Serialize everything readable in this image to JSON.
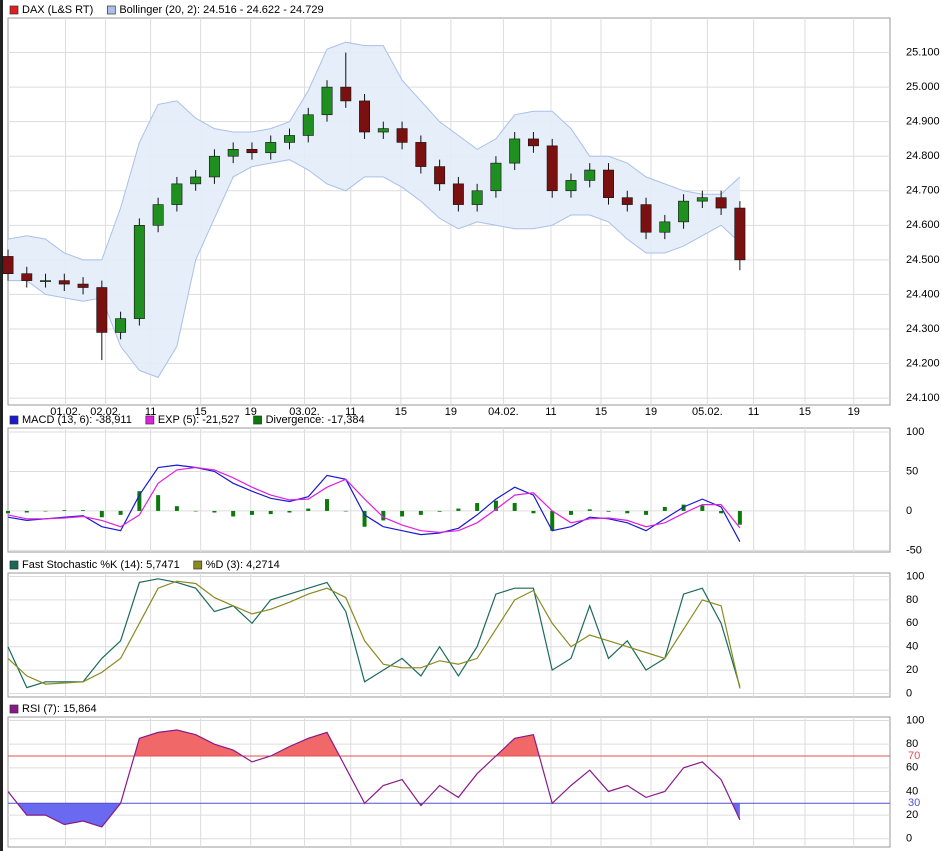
{
  "chart_data": [
    {
      "type": "candlestick",
      "x": [
        0,
        1.5,
        3,
        4.5,
        6,
        7.5,
        9,
        10.5,
        12,
        13.5,
        15,
        16.5,
        18,
        19.5,
        21,
        22.5,
        24,
        25.5,
        27,
        28.5,
        30,
        31.5,
        33,
        34.5,
        36,
        37.5,
        39,
        40.5,
        42,
        43.5,
        45,
        46.5,
        48,
        49.5,
        51,
        52.5,
        54,
        55.5,
        57,
        58.5
      ],
      "candles": {
        "name": "DAX (L&S RT)",
        "color": "#e02020",
        "up_color": "#1f8f1f",
        "down_color": "#7a1010",
        "open": [
          24510,
          24460,
          24440,
          24440,
          24430,
          24420,
          24290,
          24330,
          24600,
          24660,
          24720,
          24740,
          24800,
          24820,
          24810,
          24840,
          24860,
          24920,
          25000,
          24960,
          24870,
          24880,
          24840,
          24770,
          24720,
          24660,
          24700,
          24780,
          24850,
          24830,
          24700,
          24730,
          24760,
          24680,
          24660,
          24580,
          24610,
          24670,
          24680,
          24650
        ],
        "high": [
          24530,
          24480,
          24460,
          24460,
          24450,
          24440,
          24350,
          24620,
          24680,
          24740,
          24760,
          24820,
          24840,
          24840,
          24860,
          24880,
          24940,
          25020,
          25100,
          24980,
          24900,
          24900,
          24860,
          24790,
          24740,
          24720,
          24800,
          24870,
          24870,
          24850,
          24750,
          24780,
          24780,
          24700,
          24680,
          24630,
          24690,
          24700,
          24700,
          24670
        ],
        "low": [
          24440,
          24420,
          24420,
          24410,
          24400,
          24210,
          24270,
          24310,
          24580,
          24640,
          24700,
          24720,
          24780,
          24790,
          24790,
          24820,
          24840,
          24900,
          24940,
          24850,
          24850,
          24820,
          24750,
          24700,
          24640,
          24640,
          24680,
          24760,
          24810,
          24680,
          24680,
          24710,
          24660,
          24640,
          24560,
          24560,
          24590,
          24650,
          24630,
          24470
        ],
        "close": [
          24460,
          24440,
          24440,
          24430,
          24420,
          24290,
          24330,
          24600,
          24660,
          24720,
          24740,
          24800,
          24820,
          24810,
          24840,
          24860,
          24920,
          25000,
          24960,
          24870,
          24880,
          24840,
          24770,
          24720,
          24660,
          24700,
          24780,
          24850,
          24830,
          24700,
          24730,
          24760,
          24680,
          24660,
          24580,
          24610,
          24670,
          24680,
          24650,
          24500
        ]
      },
      "bands": {
        "name": "Bollinger (20, 2): 24.516 - 24.622 - 24.729",
        "color": "#aac0e8",
        "fill": "#e3ecfa",
        "upper": [
          24560,
          24570,
          24560,
          24520,
          24500,
          24500,
          24650,
          24840,
          24950,
          24960,
          24910,
          24880,
          24870,
          24870,
          24880,
          24900,
          24990,
          25110,
          25130,
          25120,
          25120,
          25020,
          24960,
          24900,
          24860,
          24820,
          24850,
          24920,
          24930,
          24930,
          24880,
          24800,
          24800,
          24780,
          24740,
          24720,
          24700,
          24690,
          24690,
          24740
        ],
        "lower": [
          24440,
          24440,
          24400,
          24390,
          24380,
          24390,
          24250,
          24180,
          24160,
          24250,
          24500,
          24620,
          24740,
          24770,
          24780,
          24790,
          24760,
          24720,
          24700,
          24740,
          24740,
          24710,
          24670,
          24620,
          24590,
          24610,
          24600,
          24590,
          24590,
          24600,
          24630,
          24630,
          24610,
          24560,
          24520,
          24520,
          24540,
          24570,
          24600,
          24550
        ]
      },
      "xlim": [
        0,
        70.5
      ],
      "xticks": [
        {
          "value": 4.6,
          "label": "01.02."
        },
        {
          "value": 7.8,
          "label": "02.02."
        },
        {
          "value": 11.4,
          "label": "11"
        },
        {
          "value": 15.4,
          "label": "15"
        },
        {
          "value": 19.4,
          "label": "19"
        },
        {
          "value": 23.7,
          "label": "03.02."
        },
        {
          "value": 27.4,
          "label": "11"
        },
        {
          "value": 31.4,
          "label": "15"
        },
        {
          "value": 35.4,
          "label": "19"
        },
        {
          "value": 39.6,
          "label": "04.02."
        },
        {
          "value": 43.4,
          "label": "11"
        },
        {
          "value": 47.4,
          "label": "15"
        },
        {
          "value": 51.4,
          "label": "19"
        },
        {
          "value": 55.9,
          "label": "05.02."
        },
        {
          "value": 59.6,
          "label": "11"
        },
        {
          "value": 63.7,
          "label": "15"
        },
        {
          "value": 67.6,
          "label": "19"
        }
      ],
      "ylim": [
        24080,
        25200
      ],
      "yticks": [
        {
          "value": 24100,
          "label": "24.100"
        },
        {
          "value": 24200,
          "label": "24.200"
        },
        {
          "value": 24300,
          "label": "24.300"
        },
        {
          "value": 24400,
          "label": "24.400"
        },
        {
          "value": 24500,
          "label": "24.500"
        },
        {
          "value": 24600,
          "label": "24.600"
        },
        {
          "value": 24700,
          "label": "24.700"
        },
        {
          "value": 24800,
          "label": "24.800"
        },
        {
          "value": 24900,
          "label": "24.900"
        },
        {
          "value": 25000,
          "label": "25.000"
        },
        {
          "value": 25100,
          "label": "25.100"
        }
      ],
      "grid": true
    },
    {
      "type": "line",
      "x": [
        0,
        1.5,
        3,
        4.5,
        6,
        7.5,
        9,
        10.5,
        12,
        13.5,
        15,
        16.5,
        18,
        19.5,
        21,
        22.5,
        24,
        25.5,
        27,
        28.5,
        30,
        31.5,
        33,
        34.5,
        36,
        37.5,
        39,
        40.5,
        42,
        43.5,
        45,
        46.5,
        48,
        49.5,
        51,
        52.5,
        54,
        55.5,
        57,
        58.5
      ],
      "xlim": [
        0,
        70.5
      ],
      "series": [
        {
          "name": "MACD (13, 6): -38,911",
          "color": "#1a1ad0",
          "style": "line",
          "values": [
            -8,
            -12,
            -10,
            -8,
            -6,
            -20,
            -25,
            20,
            55,
            58,
            55,
            50,
            35,
            25,
            16,
            12,
            18,
            45,
            40,
            -5,
            -20,
            -25,
            -30,
            -28,
            -22,
            -5,
            15,
            30,
            20,
            -25,
            -20,
            -8,
            -10,
            -15,
            -25,
            -10,
            5,
            15,
            5,
            -38.9
          ]
        },
        {
          "name": "EXP (5): -21,527",
          "color": "#e020e0",
          "style": "line",
          "values": [
            -5,
            -10,
            -10,
            -9,
            -7,
            -12,
            -20,
            -5,
            35,
            52,
            55,
            52,
            42,
            30,
            20,
            14,
            15,
            30,
            40,
            15,
            -8,
            -18,
            -25,
            -27,
            -25,
            -15,
            2,
            20,
            23,
            0,
            -15,
            -10,
            -9,
            -12,
            -20,
            -15,
            -3,
            8,
            8,
            -21.5
          ]
        },
        {
          "name": "Divergence: -17,384",
          "color": "#0a7a0a",
          "style": "bar",
          "values": [
            -3,
            -2,
            0,
            1,
            1,
            -8,
            -5,
            25,
            20,
            6,
            0,
            -2,
            -7,
            -5,
            -4,
            -2,
            3,
            15,
            0,
            -20,
            -12,
            -7,
            -5,
            -1,
            3,
            10,
            13,
            10,
            -3,
            -25,
            -5,
            2,
            -1,
            -3,
            -5,
            5,
            8,
            7,
            -3,
            -17.4
          ]
        }
      ],
      "ylim": [
        -52,
        105
      ],
      "yticks": [
        -50,
        0,
        50,
        100
      ],
      "grid": true
    },
    {
      "type": "line",
      "x": [
        0,
        1.5,
        3,
        4.5,
        6,
        7.5,
        9,
        10.5,
        12,
        13.5,
        15,
        16.5,
        18,
        19.5,
        21,
        22.5,
        24,
        25.5,
        27,
        28.5,
        30,
        31.5,
        33,
        34.5,
        36,
        37.5,
        39,
        40.5,
        42,
        43.5,
        45,
        46.5,
        48,
        49.5,
        51,
        52.5,
        54,
        55.5,
        57,
        58.5
      ],
      "xlim": [
        0,
        70.5
      ],
      "series": [
        {
          "name": "Fast Stochastic %K (14): 5,7471",
          "color": "#1a6a5a",
          "style": "line",
          "values": [
            40,
            5,
            10,
            10,
            10,
            30,
            45,
            95,
            98,
            95,
            90,
            70,
            75,
            60,
            80,
            85,
            90,
            95,
            70,
            10,
            20,
            30,
            15,
            40,
            15,
            40,
            85,
            90,
            90,
            20,
            30,
            75,
            30,
            45,
            20,
            30,
            85,
            90,
            60,
            5.7
          ]
        },
        {
          "name": "%D (3): 4,2714",
          "color": "#8a8a20",
          "style": "line",
          "values": [
            30,
            15,
            8,
            9,
            10,
            18,
            30,
            60,
            90,
            96,
            94,
            82,
            75,
            68,
            72,
            78,
            85,
            90,
            82,
            45,
            25,
            22,
            22,
            28,
            25,
            30,
            55,
            80,
            88,
            60,
            40,
            50,
            45,
            40,
            35,
            30,
            55,
            80,
            75,
            4.3
          ]
        }
      ],
      "ylim": [
        -3,
        103
      ],
      "yticks": [
        0,
        20,
        40,
        60,
        80,
        100
      ],
      "grid": true
    },
    {
      "type": "line",
      "x": [
        0,
        1.5,
        3,
        4.5,
        6,
        7.5,
        9,
        10.5,
        12,
        13.5,
        15,
        16.5,
        18,
        19.5,
        21,
        22.5,
        24,
        25.5,
        27,
        28.5,
        30,
        31.5,
        33,
        34.5,
        36,
        37.5,
        39,
        40.5,
        42,
        43.5,
        45,
        46.5,
        48,
        49.5,
        51,
        52.5,
        54,
        55.5,
        57,
        58.5
      ],
      "xlim": [
        0,
        70.5
      ],
      "series": [
        {
          "name": "RSI (7): 15,864",
          "color": "#8a1a8a",
          "style": "line",
          "values": [
            40,
            20,
            20,
            12,
            15,
            10,
            30,
            85,
            90,
            92,
            88,
            80,
            75,
            65,
            70,
            78,
            85,
            90,
            60,
            30,
            45,
            50,
            28,
            45,
            35,
            55,
            70,
            85,
            88,
            30,
            45,
            58,
            40,
            45,
            35,
            40,
            60,
            65,
            50,
            15.9
          ]
        }
      ],
      "thresholds": [
        {
          "value": 70,
          "color": "#e05050",
          "fill": "#f06868",
          "side": "above"
        },
        {
          "value": 30,
          "color": "#5050d0",
          "fill": "#6a6af0",
          "side": "below"
        }
      ],
      "ylim": [
        -7,
        103
      ],
      "yticks": [
        0,
        20,
        40,
        60,
        80,
        100
      ],
      "grid": true
    }
  ]
}
